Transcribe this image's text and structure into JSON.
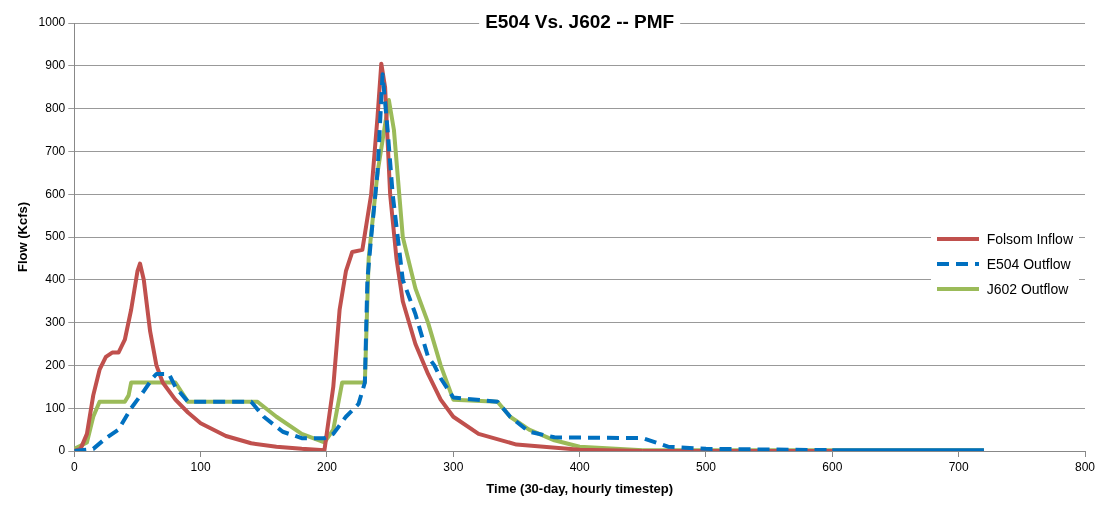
{
  "chart_data": {
    "type": "line",
    "title": "E504 Vs. J602 -- PMF",
    "xlabel": "Time (30-day, hourly timestep)",
    "ylabel": "Flow (Kcfs)",
    "xlim": [
      0,
      800
    ],
    "xticks": [
      0,
      100,
      200,
      300,
      400,
      500,
      600,
      700,
      800
    ],
    "ylim": [
      0,
      1000
    ],
    "yticks": [
      0,
      100,
      200,
      300,
      400,
      500,
      600,
      700,
      800,
      900,
      1000
    ],
    "grid": "y",
    "legend": "right",
    "marker": "none",
    "series": [
      {
        "name": "Folsom Inflow",
        "color": "#c0504d",
        "line_style": "solid",
        "x": [
          0,
          5,
          10,
          15,
          20,
          25,
          30,
          35,
          40,
          45,
          50,
          52,
          55,
          60,
          65,
          70,
          80,
          90,
          100,
          120,
          140,
          160,
          180,
          198,
          205,
          210,
          215,
          220,
          228,
          235,
          240,
          243,
          246,
          250,
          255,
          260,
          270,
          280,
          290,
          300,
          320,
          350,
          400,
          450,
          720
        ],
        "values": [
          0,
          5,
          40,
          130,
          190,
          220,
          230,
          230,
          260,
          330,
          420,
          438,
          400,
          280,
          200,
          160,
          120,
          90,
          65,
          35,
          18,
          10,
          5,
          2,
          150,
          330,
          420,
          465,
          470,
          600,
          780,
          905,
          850,
          600,
          450,
          350,
          250,
          180,
          120,
          80,
          40,
          15,
          3,
          0,
          0
        ]
      },
      {
        "name": "E504 Outflow",
        "color": "#0070c0",
        "line_style": "dashed",
        "x": [
          0,
          15,
          25,
          35,
          45,
          55,
          62,
          65,
          75,
          80,
          90,
          140,
          150,
          165,
          180,
          198,
          205,
          215,
          225,
          230,
          232,
          235,
          240,
          244,
          248,
          252,
          260,
          270,
          280,
          285,
          290,
          300,
          335,
          345,
          360,
          380,
          450,
          460,
          470,
          500,
          600,
          720
        ],
        "values": [
          0,
          5,
          30,
          50,
          100,
          140,
          170,
          180,
          180,
          150,
          115,
          115,
          80,
          45,
          30,
          30,
          40,
          80,
          110,
          160,
          400,
          500,
          650,
          880,
          750,
          600,
          400,
          320,
          220,
          200,
          170,
          125,
          115,
          80,
          45,
          32,
          30,
          20,
          10,
          5,
          2,
          2
        ]
      },
      {
        "name": "J602 Outflow",
        "color": "#9bbb59",
        "line_style": "solid",
        "x": [
          0,
          10,
          15,
          20,
          40,
          43,
          45,
          80,
          90,
          145,
          160,
          180,
          198,
          205,
          212,
          230,
          233,
          240,
          249,
          253,
          260,
          270,
          280,
          290,
          300,
          335,
          345,
          360,
          380,
          400,
          450,
          720
        ],
        "values": [
          5,
          20,
          80,
          115,
          115,
          130,
          160,
          160,
          115,
          115,
          80,
          40,
          20,
          50,
          160,
          160,
          450,
          650,
          820,
          750,
          500,
          380,
          300,
          200,
          120,
          115,
          80,
          50,
          25,
          10,
          2,
          2
        ]
      }
    ]
  }
}
